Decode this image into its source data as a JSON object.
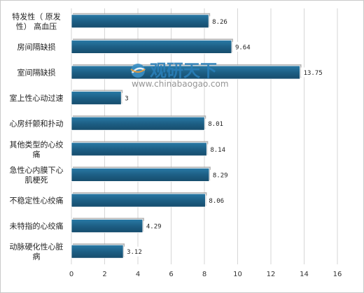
{
  "chart_data": {
    "type": "bar",
    "orientation": "horizontal",
    "categories": [
      "特发性（ 原发性） 高血压",
      "房间隔缺损",
      "室间隔缺损",
      "室上性心动过速",
      "心房纤颤和扑动",
      "其他类型的心绞痛",
      "急性心内膜下心肌梗死",
      "不稳定性心绞痛",
      "未特指的心绞痛",
      "动脉硬化性心脏病"
    ],
    "values": [
      8.26,
      9.64,
      13.75,
      3,
      8.01,
      8.14,
      8.29,
      8.06,
      4.29,
      3.12
    ],
    "data_labels": [
      "8.26",
      "9.64",
      "13.75",
      "3",
      "8.01",
      "8.14",
      "8.29",
      "8.06",
      "4.29",
      "3.12"
    ],
    "xlim": [
      0,
      16
    ],
    "xticks": [
      "0",
      "2",
      "4",
      "6",
      "8",
      "10",
      "12",
      "14",
      "16"
    ],
    "grid": "vertical",
    "bar_color": "#1d5f85",
    "title": "",
    "xlabel": "",
    "ylabel": ""
  },
  "watermark": {
    "logo_text": "观研天下",
    "url": "www.chinabaogao.com"
  }
}
